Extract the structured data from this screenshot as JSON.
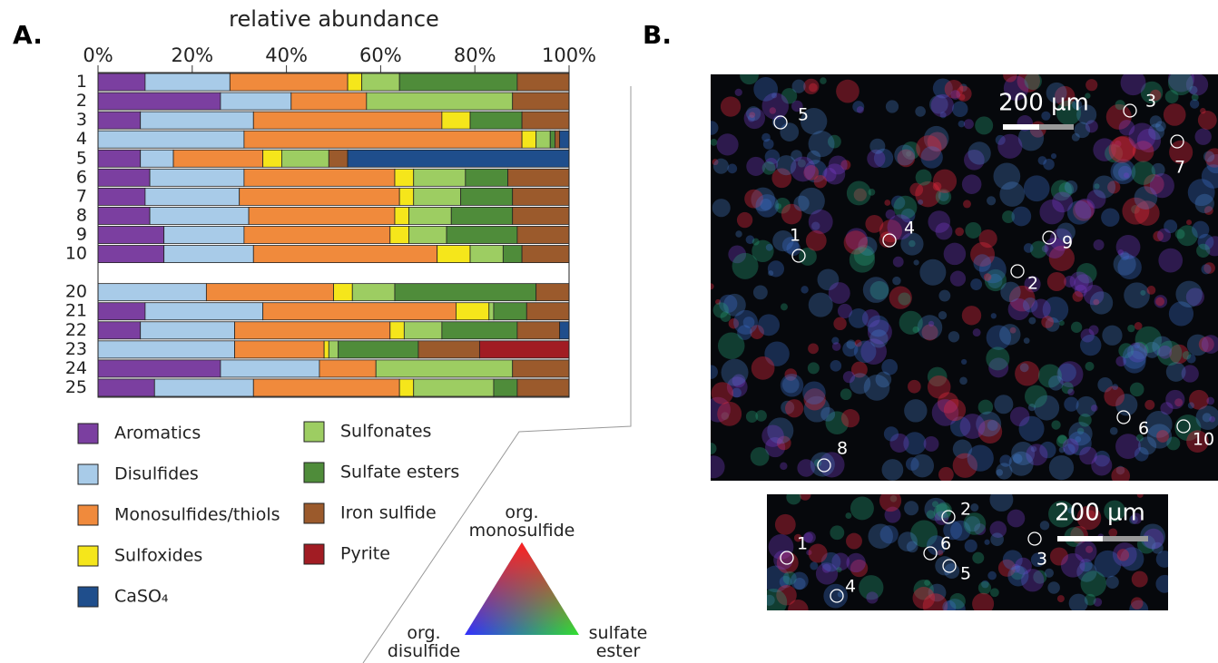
{
  "chart_data": {
    "type": "stacked_barh",
    "panel_label": "A.",
    "x_label": "relative abundance",
    "categories": [
      "1",
      "2",
      "3",
      "4",
      "5",
      "6",
      "7",
      "8",
      "9",
      "10",
      null,
      "20",
      "21",
      "22",
      "23",
      "24",
      "25"
    ],
    "xlim": [
      0,
      100
    ],
    "xticks": [
      {
        "value": 0,
        "label": "0%"
      },
      {
        "value": 20,
        "label": "20%"
      },
      {
        "value": 40,
        "label": "40%"
      },
      {
        "value": 60,
        "label": "60%"
      },
      {
        "value": 80,
        "label": "80%"
      },
      {
        "value": 100,
        "label": "100%"
      }
    ],
    "series": [
      {
        "name": "Aromatics",
        "color": "#7b3fa0",
        "values": [
          10,
          26,
          9,
          0,
          9,
          11,
          10,
          11,
          14,
          14,
          null,
          0,
          10,
          9,
          0,
          26,
          12
        ]
      },
      {
        "name": "Disulfides",
        "color": "#a8cbe8",
        "values": [
          18,
          15,
          24,
          31,
          7,
          20,
          20,
          21,
          17,
          19,
          null,
          23,
          25,
          20,
          29,
          21,
          21
        ]
      },
      {
        "name": "Monosulfides/thiols",
        "color": "#f08a3c",
        "values": [
          25,
          16,
          40,
          59,
          19,
          32,
          34,
          31,
          31,
          39,
          null,
          27,
          41,
          33,
          19,
          12,
          31
        ]
      },
      {
        "name": "Sulfoxides",
        "color": "#f5e61b",
        "values": [
          3,
          0,
          6,
          3,
          4,
          4,
          3,
          3,
          4,
          7,
          null,
          4,
          7,
          3,
          1,
          0,
          3
        ]
      },
      {
        "name": "Sulfonates",
        "color": "#9dcd62",
        "values": [
          8,
          31,
          0,
          3,
          10,
          11,
          10,
          9,
          8,
          7,
          null,
          9,
          1,
          8,
          2,
          29,
          17
        ]
      },
      {
        "name": "Sulfate esters",
        "color": "#4f8c3a",
        "values": [
          25,
          0,
          11,
          1,
          0,
          9,
          11,
          13,
          15,
          4,
          null,
          30,
          7,
          16,
          17,
          0,
          5
        ]
      },
      {
        "name": "Iron sulfide",
        "color": "#9b5a2c",
        "values": [
          11,
          12,
          10,
          1,
          4,
          13,
          12,
          12,
          11,
          10,
          null,
          7,
          9,
          9,
          13,
          12,
          11
        ]
      },
      {
        "name": "Pyrite",
        "color": "#a11c23",
        "values": [
          0,
          0,
          0,
          0,
          0,
          0,
          0,
          0,
          0,
          0,
          null,
          0,
          0,
          0,
          19,
          0,
          0
        ]
      },
      {
        "name": "CaSO₄",
        "color": "#1f4e8c",
        "values": [
          0,
          0,
          0,
          2,
          47,
          0,
          0,
          0,
          0,
          0,
          null,
          0,
          0,
          2,
          0,
          0,
          0
        ]
      }
    ],
    "grid": false
  },
  "ternary_key": {
    "top": "org. monosulfide",
    "left": "org. disulfide",
    "right": "sulfate ester"
  },
  "image_panels": {
    "panel_label": "B.",
    "main": {
      "scale_bar": "200 µm",
      "labels": [
        "5",
        "3",
        "7",
        "1",
        "4",
        "9",
        "2",
        "6",
        "10",
        "8"
      ]
    },
    "inset": {
      "scale_bar": "200 µm",
      "labels": [
        "1",
        "2",
        "6",
        "5",
        "3",
        "4"
      ]
    }
  }
}
